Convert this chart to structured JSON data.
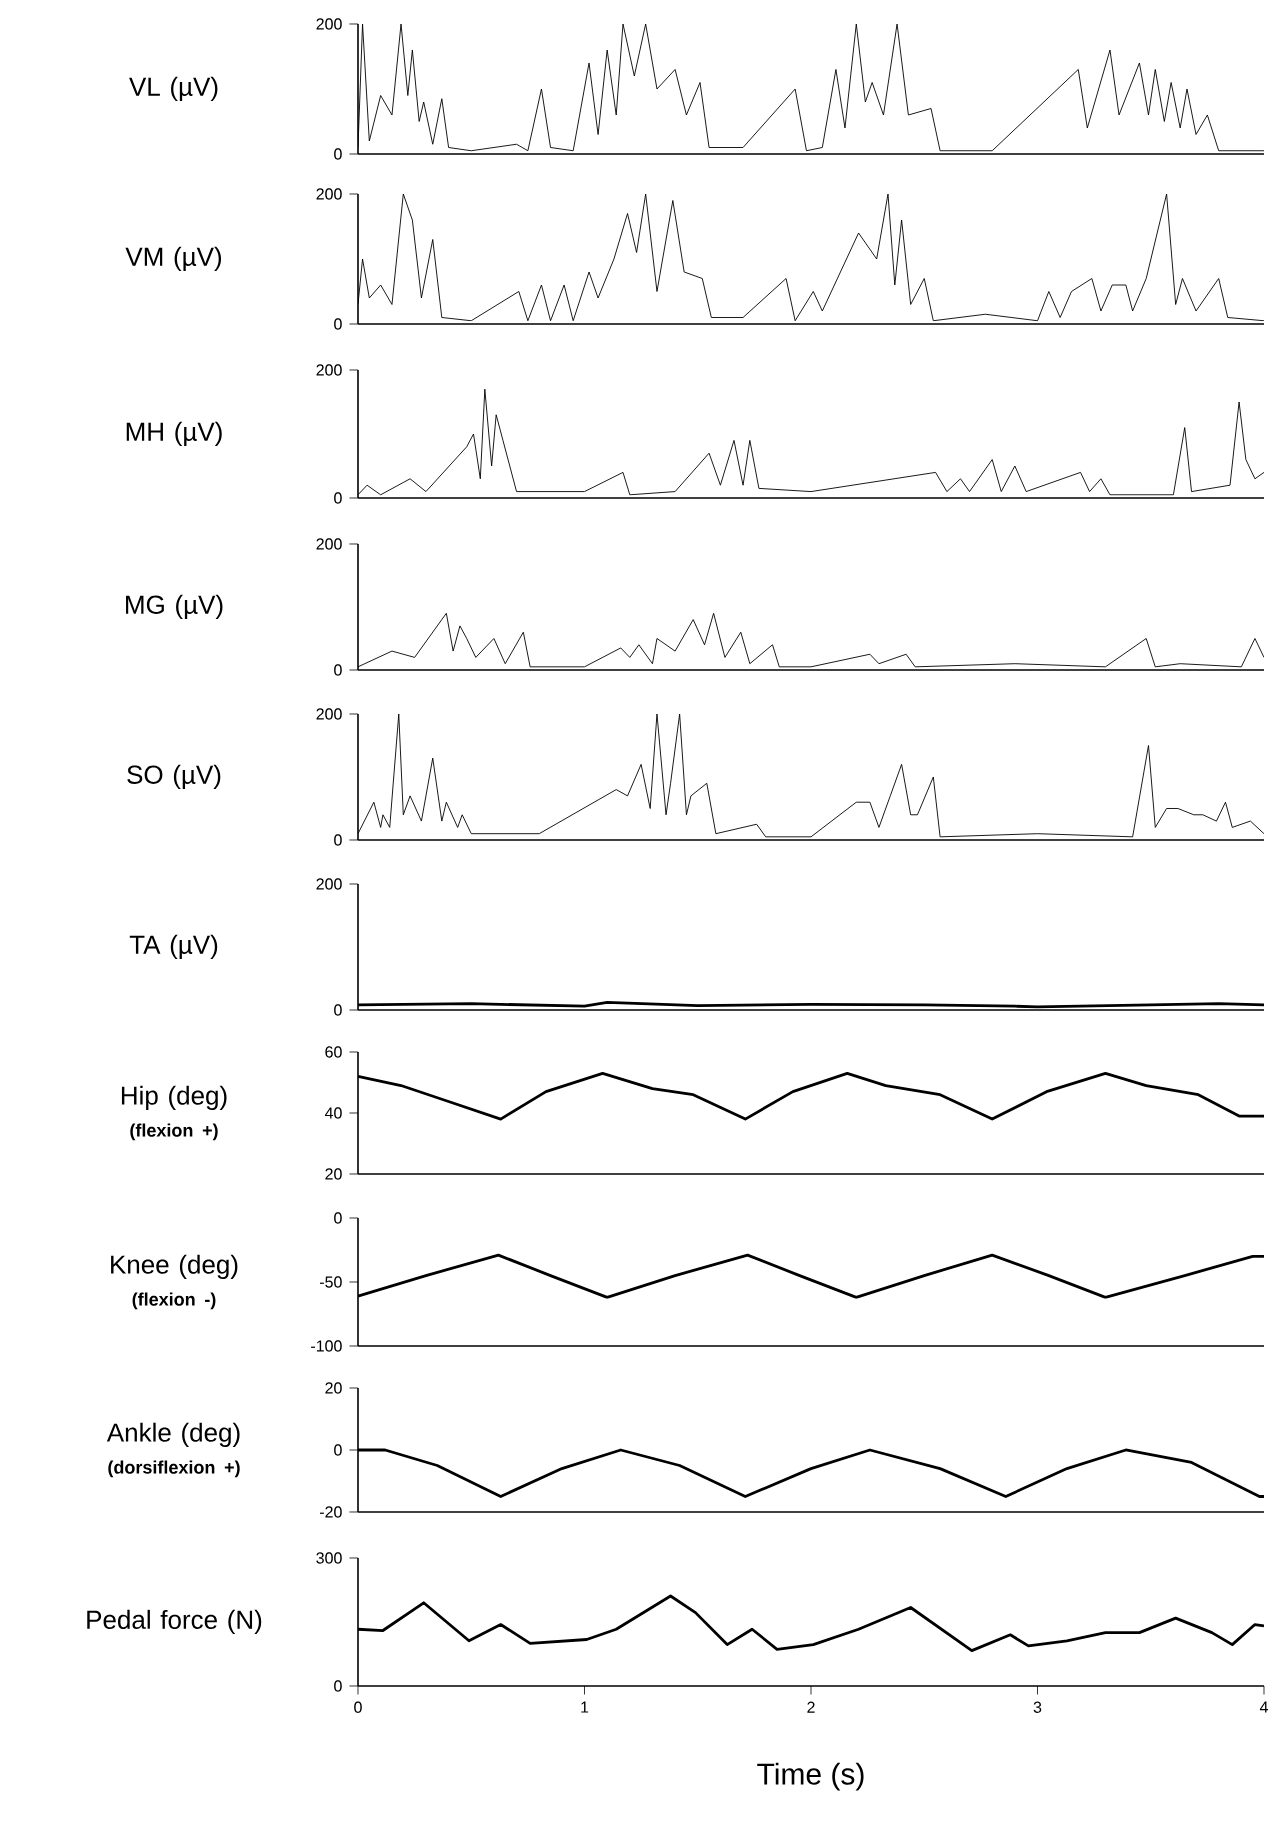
{
  "chart_data": [
    {
      "type": "line",
      "ylabel": "VL (µV)",
      "color": "#000000",
      "xlim": [
        0,
        4
      ],
      "ylim": [
        0,
        200
      ],
      "yticks": [
        0,
        200
      ],
      "tick_labels": "y",
      "x": [
        0,
        0.02,
        0.05,
        0.1,
        0.15,
        0.19,
        0.22,
        0.24,
        0.27,
        0.29,
        0.33,
        0.37,
        0.4,
        0.5,
        0.7,
        0.75,
        0.81,
        0.85,
        0.95,
        1.02,
        1.06,
        1.1,
        1.14,
        1.17,
        1.22,
        1.27,
        1.32,
        1.4,
        1.45,
        1.51,
        1.55,
        1.7,
        1.93,
        1.98,
        2.05,
        2.11,
        2.15,
        2.2,
        2.24,
        2.27,
        2.32,
        2.38,
        2.43,
        2.53,
        2.57,
        2.8,
        3.18,
        3.22,
        3.32,
        3.36,
        3.45,
        3.49,
        3.52,
        3.56,
        3.59,
        3.63,
        3.66,
        3.7,
        3.75,
        3.8,
        4
      ],
      "values": [
        10,
        200,
        20,
        90,
        60,
        200,
        90,
        160,
        50,
        80,
        15,
        85,
        10,
        5,
        15,
        5,
        100,
        10,
        5,
        140,
        30,
        160,
        60,
        200,
        120,
        200,
        100,
        130,
        60,
        110,
        10,
        10,
        100,
        5,
        10,
        130,
        40,
        200,
        80,
        110,
        60,
        200,
        60,
        70,
        5,
        5,
        130,
        40,
        160,
        60,
        140,
        60,
        130,
        50,
        110,
        40,
        100,
        30,
        60,
        5,
        5
      ]
    },
    {
      "type": "line",
      "ylabel": "VM (µV)",
      "color": "#000000",
      "xlim": [
        0,
        4
      ],
      "ylim": [
        0,
        200
      ],
      "yticks": [
        0,
        200
      ],
      "tick_labels": "y",
      "x": [
        0,
        0.02,
        0.05,
        0.1,
        0.15,
        0.2,
        0.24,
        0.28,
        0.33,
        0.37,
        0.5,
        0.71,
        0.75,
        0.81,
        0.85,
        0.91,
        0.95,
        1.02,
        1.06,
        1.13,
        1.19,
        1.23,
        1.27,
        1.32,
        1.39,
        1.44,
        1.52,
        1.56,
        1.7,
        1.89,
        1.93,
        2.01,
        2.05,
        2.13,
        2.21,
        2.29,
        2.34,
        2.37,
        2.4,
        2.44,
        2.5,
        2.54,
        2.77,
        3.0,
        3.05,
        3.1,
        3.15,
        3.24,
        3.28,
        3.33,
        3.39,
        3.42,
        3.48,
        3.57,
        3.61,
        3.64,
        3.7,
        3.8,
        3.84,
        4
      ],
      "values": [
        30,
        100,
        40,
        60,
        30,
        200,
        160,
        40,
        130,
        10,
        5,
        50,
        5,
        60,
        5,
        60,
        5,
        80,
        40,
        100,
        170,
        110,
        200,
        50,
        190,
        80,
        70,
        10,
        10,
        70,
        5,
        50,
        20,
        80,
        140,
        100,
        200,
        60,
        160,
        30,
        70,
        5,
        15,
        5,
        50,
        10,
        50,
        70,
        20,
        60,
        60,
        20,
        70,
        200,
        30,
        70,
        20,
        70,
        10,
        5
      ]
    },
    {
      "type": "line",
      "ylabel": "MH (µV)",
      "color": "#000000",
      "xlim": [
        0,
        4
      ],
      "ylim": [
        0,
        200
      ],
      "yticks": [
        0,
        200
      ],
      "tick_labels": "y",
      "x": [
        0,
        0.04,
        0.1,
        0.23,
        0.3,
        0.48,
        0.51,
        0.54,
        0.56,
        0.59,
        0.61,
        0.64,
        0.7,
        1.0,
        1.17,
        1.2,
        1.4,
        1.55,
        1.6,
        1.66,
        1.7,
        1.73,
        1.77,
        2.0,
        2.55,
        2.6,
        2.66,
        2.7,
        2.8,
        2.84,
        2.9,
        2.95,
        3.19,
        3.23,
        3.28,
        3.32,
        3.6,
        3.65,
        3.68,
        3.85,
        3.89,
        3.92,
        3.96,
        4
      ],
      "values": [
        5,
        20,
        5,
        30,
        10,
        80,
        100,
        30,
        170,
        50,
        130,
        90,
        10,
        10,
        40,
        5,
        10,
        70,
        20,
        90,
        20,
        90,
        15,
        10,
        40,
        10,
        30,
        10,
        60,
        10,
        50,
        10,
        40,
        10,
        30,
        5,
        5,
        110,
        10,
        20,
        150,
        60,
        30,
        40
      ]
    },
    {
      "type": "line",
      "ylabel": "MG (µV)",
      "color": "#000000",
      "xlim": [
        0,
        4
      ],
      "ylim": [
        0,
        200
      ],
      "yticks": [
        0,
        200
      ],
      "tick_labels": "y",
      "x": [
        0,
        0.15,
        0.25,
        0.39,
        0.42,
        0.45,
        0.48,
        0.52,
        0.6,
        0.65,
        0.73,
        0.76,
        1.0,
        1.16,
        1.2,
        1.24,
        1.3,
        1.32,
        1.4,
        1.48,
        1.53,
        1.57,
        1.62,
        1.69,
        1.73,
        1.83,
        1.86,
        2.0,
        2.26,
        2.3,
        2.42,
        2.46,
        2.9,
        3.3,
        3.48,
        3.52,
        3.63,
        3.9,
        3.96,
        4
      ],
      "values": [
        5,
        30,
        20,
        90,
        30,
        70,
        50,
        20,
        50,
        10,
        60,
        5,
        5,
        35,
        20,
        40,
        10,
        50,
        30,
        80,
        40,
        90,
        20,
        60,
        10,
        40,
        5,
        5,
        25,
        10,
        25,
        5,
        10,
        5,
        50,
        5,
        10,
        5,
        50,
        20
      ]
    },
    {
      "type": "line",
      "ylabel": "SO (µV)",
      "color": "#000000",
      "xlim": [
        0,
        4
      ],
      "ylim": [
        0,
        200
      ],
      "yticks": [
        0,
        200
      ],
      "tick_labels": "y",
      "x": [
        0,
        0.07,
        0.1,
        0.11,
        0.14,
        0.18,
        0.2,
        0.23,
        0.28,
        0.33,
        0.37,
        0.39,
        0.44,
        0.46,
        0.5,
        0.8,
        1.14,
        1.19,
        1.25,
        1.29,
        1.32,
        1.36,
        1.38,
        1.42,
        1.45,
        1.47,
        1.54,
        1.58,
        1.76,
        1.8,
        2.0,
        2.2,
        2.26,
        2.3,
        2.35,
        2.4,
        2.44,
        2.47,
        2.54,
        2.57,
        3.0,
        3.42,
        3.49,
        3.52,
        3.57,
        3.62,
        3.69,
        3.73,
        3.79,
        3.83,
        3.86,
        3.94,
        4
      ],
      "values": [
        10,
        60,
        20,
        40,
        20,
        200,
        40,
        70,
        30,
        130,
        30,
        60,
        20,
        40,
        10,
        10,
        80,
        70,
        120,
        50,
        200,
        40,
        90,
        200,
        40,
        70,
        90,
        10,
        25,
        5,
        5,
        60,
        60,
        20,
        70,
        120,
        40,
        40,
        100,
        5,
        10,
        5,
        150,
        20,
        50,
        50,
        40,
        40,
        30,
        60,
        20,
        30,
        10
      ]
    },
    {
      "type": "line",
      "ylabel": "TA (µV)",
      "color": "#000000",
      "xlim": [
        0,
        4
      ],
      "ylim": [
        0,
        200
      ],
      "yticks": [
        0,
        200
      ],
      "tick_labels": "y",
      "x": [
        0,
        0.5,
        1.0,
        1.1,
        1.5,
        2.0,
        2.5,
        2.9,
        3.0,
        3.5,
        3.8,
        4
      ],
      "values": [
        8,
        10,
        6,
        12,
        7,
        9,
        8,
        6,
        5,
        8,
        10,
        8
      ]
    },
    {
      "type": "line",
      "ylabel": "Hip (deg)",
      "annotations": [
        "(flexion +)"
      ],
      "color": "#000000",
      "xlim": [
        0,
        4
      ],
      "ylim": [
        20,
        60
      ],
      "yticks": [
        20,
        40,
        60
      ],
      "tick_labels": "y",
      "x": [
        0,
        0.19,
        0.39,
        0.63,
        0.83,
        1.08,
        1.3,
        1.48,
        1.71,
        1.92,
        2.16,
        2.33,
        2.57,
        2.8,
        3.04,
        3.3,
        3.48,
        3.71,
        3.89,
        4
      ],
      "values": [
        52,
        49,
        44,
        38,
        47,
        53,
        48,
        46,
        38,
        47,
        53,
        49,
        46,
        38,
        47,
        53,
        49,
        46,
        39,
        39
      ]
    },
    {
      "type": "line",
      "ylabel": "Knee (deg)",
      "annotations": [
        "(flexion -)"
      ],
      "color": "#000000",
      "xlim": [
        0,
        4
      ],
      "ylim": [
        -100,
        0
      ],
      "yticks": [
        -100,
        -50,
        0
      ],
      "tick_labels": "y",
      "x": [
        0,
        0.3,
        0.62,
        0.85,
        1.1,
        1.4,
        1.72,
        1.95,
        2.2,
        2.5,
        2.8,
        3.05,
        3.3,
        3.65,
        3.95,
        4
      ],
      "values": [
        -61,
        -45,
        -29,
        -45,
        -62,
        -45,
        -29,
        -45,
        -62,
        -45,
        -29,
        -45,
        -62,
        -45,
        -30,
        -30
      ]
    },
    {
      "type": "line",
      "ylabel": "Ankle (deg)",
      "annotations": [
        "(dorsiflexion +)"
      ],
      "color": "#000000",
      "xlim": [
        0,
        4
      ],
      "ylim": [
        -20,
        20
      ],
      "yticks": [
        -20,
        0,
        20
      ],
      "tick_labels": "y",
      "x": [
        0,
        0.12,
        0.35,
        0.63,
        0.9,
        1.16,
        1.42,
        1.71,
        2.0,
        2.26,
        2.57,
        2.86,
        3.13,
        3.39,
        3.68,
        3.98,
        4
      ],
      "values": [
        0,
        0,
        -5,
        -15,
        -6,
        0,
        -5,
        -15,
        -6,
        0,
        -6,
        -15,
        -6,
        0,
        -4,
        -15,
        -15
      ]
    },
    {
      "type": "line",
      "ylabel": "Pedal force (N)",
      "xlabel": "Time (s)",
      "color": "#000000",
      "xlim": [
        0,
        4
      ],
      "xticks": [
        0,
        1,
        2,
        3,
        4
      ],
      "ylim": [
        0,
        300
      ],
      "yticks": [
        0,
        300
      ],
      "x": [
        0,
        0.11,
        0.29,
        0.49,
        0.63,
        0.76,
        1.01,
        1.14,
        1.38,
        1.49,
        1.63,
        1.74,
        1.85,
        2.01,
        2.21,
        2.44,
        2.71,
        2.88,
        2.96,
        3.13,
        3.3,
        3.45,
        3.61,
        3.77,
        3.86,
        3.96,
        4
      ],
      "values": [
        133,
        130,
        195,
        106,
        144,
        100,
        109,
        133,
        211,
        172,
        97,
        133,
        86,
        97,
        133,
        184,
        83,
        120,
        94,
        106,
        125,
        125,
        159,
        125,
        97,
        144,
        141
      ]
    }
  ]
}
